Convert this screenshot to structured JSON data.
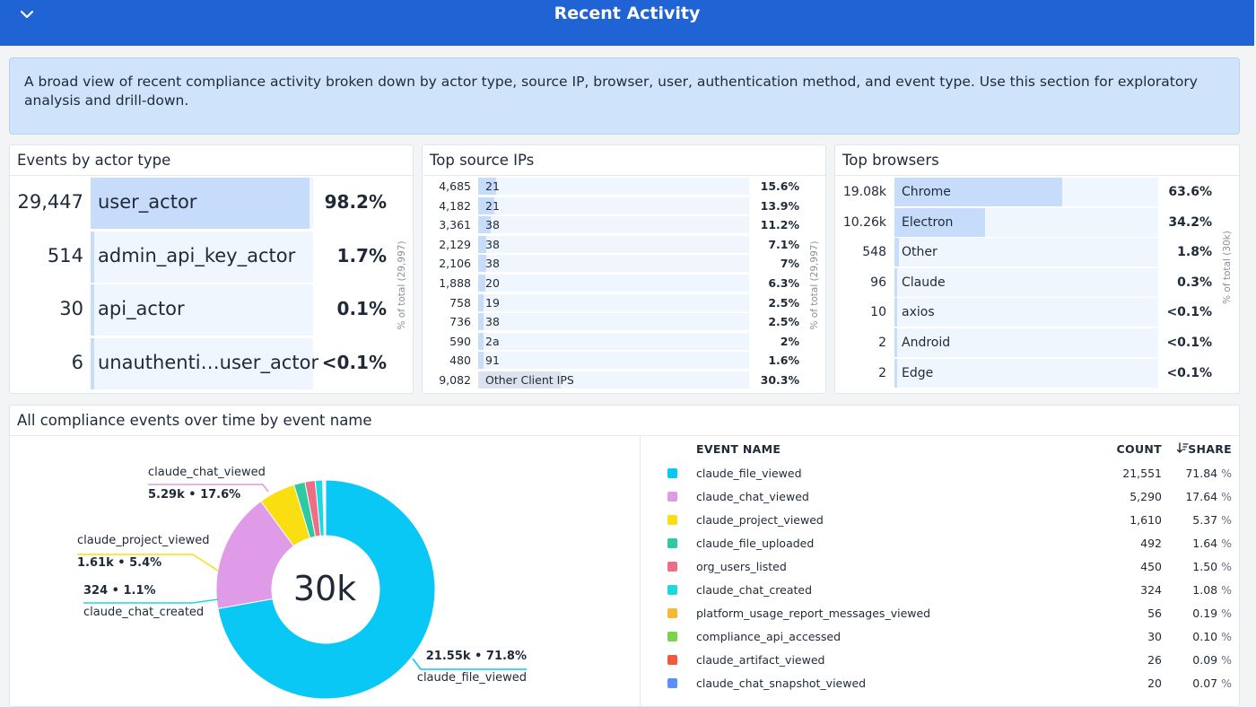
{
  "header": {
    "title": "Recent Activity"
  },
  "description": "A broad view of recent compliance activity broken down by actor type, source IP, browser, user, authentication method, and event type. Use this section for exploratory analysis and drill-down.",
  "actor_panel": {
    "title": "Events by actor type",
    "axis_label": "% of total (29,997)",
    "rows": [
      {
        "count": "29,447",
        "name": "user_actor",
        "pct": "98.2%",
        "share": 0.982
      },
      {
        "count": "514",
        "name": "admin_api_key_actor",
        "pct": "1.7%",
        "share": 0.017
      },
      {
        "count": "30",
        "name": "api_actor",
        "pct": "0.1%",
        "share": 0.001
      },
      {
        "count": "6",
        "name": "unauthenti…user_actor",
        "pct": "<0.1%",
        "share": 0.0002
      }
    ]
  },
  "ip_panel": {
    "title": "Top source IPs",
    "axis_label": "% of total (29,997)",
    "rows": [
      {
        "count": "4,685",
        "name": "21",
        "pct": "15.6%",
        "share": 0.156
      },
      {
        "count": "4,182",
        "name": "21",
        "pct": "13.9%",
        "share": 0.139
      },
      {
        "count": "3,361",
        "name": "38",
        "pct": "11.2%",
        "share": 0.112
      },
      {
        "count": "2,129",
        "name": "38",
        "pct": "7.1%",
        "share": 0.071
      },
      {
        "count": "2,106",
        "name": "38",
        "pct": "7%",
        "share": 0.07
      },
      {
        "count": "1,888",
        "name": "20",
        "pct": "6.3%",
        "share": 0.063
      },
      {
        "count": "758",
        "name": "19",
        "pct": "2.5%",
        "share": 0.025
      },
      {
        "count": "736",
        "name": "38",
        "pct": "2.5%",
        "share": 0.025
      },
      {
        "count": "590",
        "name": "2a",
        "pct": "2%",
        "share": 0.02
      },
      {
        "count": "480",
        "name": "91",
        "pct": "1.6%",
        "share": 0.016
      },
      {
        "count": "9,082",
        "name": "Other Client IPS",
        "pct": "30.3%",
        "share": 0.303,
        "other": true
      }
    ]
  },
  "browser_panel": {
    "title": "Top browsers",
    "axis_label": "% of total (30k)",
    "rows": [
      {
        "count": "19.08k",
        "name": "Chrome",
        "pct": "63.6%",
        "share": 0.636
      },
      {
        "count": "10.26k",
        "name": "Electron",
        "pct": "34.2%",
        "share": 0.342
      },
      {
        "count": "548",
        "name": "Other",
        "pct": "1.8%",
        "share": 0.018
      },
      {
        "count": "96",
        "name": "Claude",
        "pct": "0.3%",
        "share": 0.003
      },
      {
        "count": "10",
        "name": "axios",
        "pct": "<0.1%",
        "share": 0.0003
      },
      {
        "count": "2",
        "name": "Android",
        "pct": "<0.1%",
        "share": 0.0001
      },
      {
        "count": "2",
        "name": "Edge",
        "pct": "<0.1%",
        "share": 0.0001
      }
    ]
  },
  "events_panel": {
    "title": "All compliance events over time by event name",
    "center_label": "30k",
    "table_headers": {
      "name": "EVENT NAME",
      "count": "COUNT",
      "share": "SHARE"
    },
    "share_unit": "%",
    "callouts": [
      {
        "name": "claude_chat_viewed",
        "value": "5.29k • 17.6%"
      },
      {
        "name": "claude_project_viewed",
        "value": "1.61k • 5.4%"
      },
      {
        "name": "claude_chat_created",
        "value": "324 • 1.1%"
      },
      {
        "name": "claude_file_viewed",
        "value": "21.55k • 71.8%"
      }
    ]
  },
  "chart_data": {
    "type": "pie",
    "categories": [
      "claude_file_viewed",
      "claude_chat_viewed",
      "claude_project_viewed",
      "claude_file_uploaded",
      "org_users_listed",
      "claude_chat_created",
      "platform_usage_report_messages_viewed",
      "compliance_api_accessed",
      "claude_artifact_viewed",
      "claude_chat_snapshot_viewed"
    ],
    "values": [
      21551,
      5290,
      1610,
      492,
      450,
      324,
      56,
      30,
      26,
      20
    ],
    "shares": [
      "71.84",
      "17.64",
      "5.37",
      "1.64",
      "1.50",
      "1.08",
      "0.19",
      "0.10",
      "0.09",
      "0.07"
    ],
    "counts_display": [
      "21,551",
      "5,290",
      "1,610",
      "492",
      "450",
      "324",
      "56",
      "30",
      "26",
      "20"
    ],
    "colors": [
      "#0ac8f5",
      "#e09be8",
      "#fbde12",
      "#2ccaa0",
      "#ec6f86",
      "#1ed8e0",
      "#f7b733",
      "#7ad34a",
      "#ef5b3c",
      "#5b8ff9"
    ]
  }
}
